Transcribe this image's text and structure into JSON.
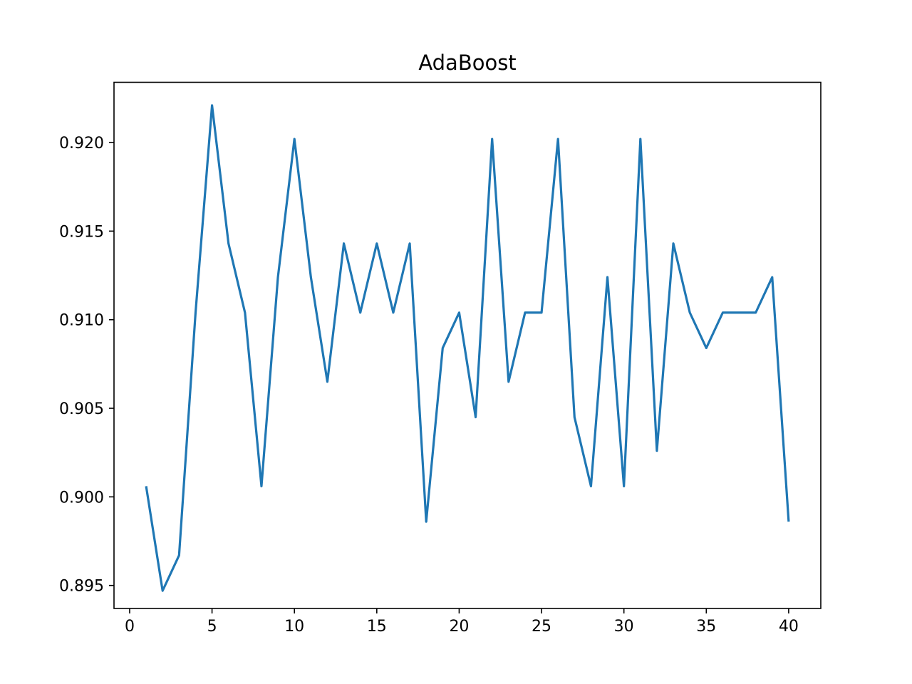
{
  "chart_data": {
    "type": "line",
    "title": "AdaBoost",
    "xlabel": "",
    "ylabel": "",
    "xlim": [
      -0.95,
      41.95
    ],
    "ylim": [
      0.8937,
      0.9234
    ],
    "xticks": [
      0,
      5,
      10,
      15,
      20,
      25,
      30,
      35,
      40
    ],
    "xtick_labels": [
      "0",
      "5",
      "10",
      "15",
      "20",
      "25",
      "30",
      "35",
      "40"
    ],
    "yticks": [
      0.895,
      0.9,
      0.905,
      0.91,
      0.915,
      0.92
    ],
    "ytick_labels": [
      "0.895",
      "0.900",
      "0.905",
      "0.910",
      "0.915",
      "0.920"
    ],
    "grid": false,
    "series": [
      {
        "color": "#1f77b4",
        "x": [
          1,
          2,
          3,
          4,
          5,
          6,
          7,
          8,
          9,
          10,
          11,
          12,
          13,
          14,
          15,
          16,
          17,
          18,
          19,
          20,
          21,
          22,
          23,
          24,
          25,
          26,
          27,
          28,
          29,
          30,
          31,
          32,
          33,
          34,
          35,
          36,
          37,
          38,
          39,
          40
        ],
        "values": [
          0.9006,
          0.8947,
          0.8967,
          0.9104,
          0.9221,
          0.9143,
          0.9104,
          0.9006,
          0.9124,
          0.9202,
          0.9124,
          0.9065,
          0.9143,
          0.9104,
          0.9143,
          0.9104,
          0.9143,
          0.8986,
          0.9084,
          0.9104,
          0.9045,
          0.9202,
          0.9065,
          0.9104,
          0.9104,
          0.9202,
          0.9045,
          0.9006,
          0.9124,
          0.9006,
          0.9202,
          0.9026,
          0.9143,
          0.9104,
          0.9084,
          0.9104,
          0.9104,
          0.9104,
          0.9124,
          0.8986
        ]
      }
    ]
  }
}
